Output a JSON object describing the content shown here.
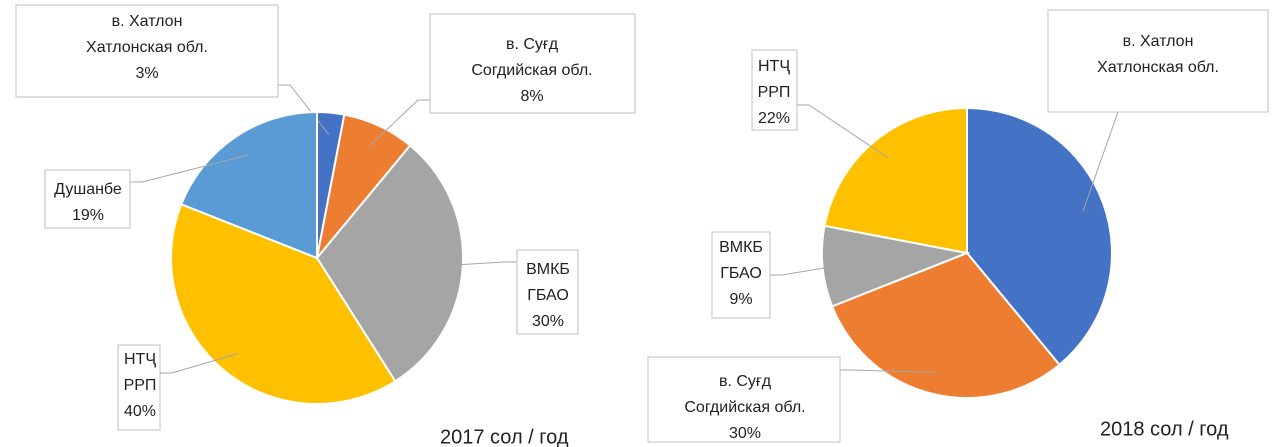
{
  "chart_data": [
    {
      "type": "pie",
      "caption": "2017 сол / год",
      "categories": [
        [
          "в. Хатлон",
          "Хатлонская обл."
        ],
        [
          "в. Суғд",
          "Согдийская обл."
        ],
        [
          "ВМКБ",
          "ГБАО"
        ],
        [
          "НТҶ",
          "РРП"
        ],
        [
          "Душанбе"
        ]
      ],
      "values": [
        3,
        8,
        30,
        40,
        19
      ],
      "value_labels": [
        "3%",
        "8%",
        "30%",
        "40%",
        "19%"
      ],
      "colors": [
        "#4472c4",
        "#ed7d31",
        "#a5a5a5",
        "#ffc000",
        "#5b9bd5"
      ]
    },
    {
      "type": "pie",
      "caption": "2018 сол / год",
      "categories": [
        [
          "в. Хатлон",
          "Хатлонская обл."
        ],
        [
          "в. Суғд",
          "Согдийская обл."
        ],
        [
          "ВМКБ",
          "ГБАО"
        ],
        [
          "НТҶ",
          "РРП"
        ]
      ],
      "values": [
        39,
        30,
        9,
        22
      ],
      "value_labels": [
        null,
        "30%",
        "9%",
        "22%"
      ],
      "colors": [
        "#4472c4",
        "#ed7d31",
        "#a5a5a5",
        "#ffc000"
      ]
    }
  ]
}
